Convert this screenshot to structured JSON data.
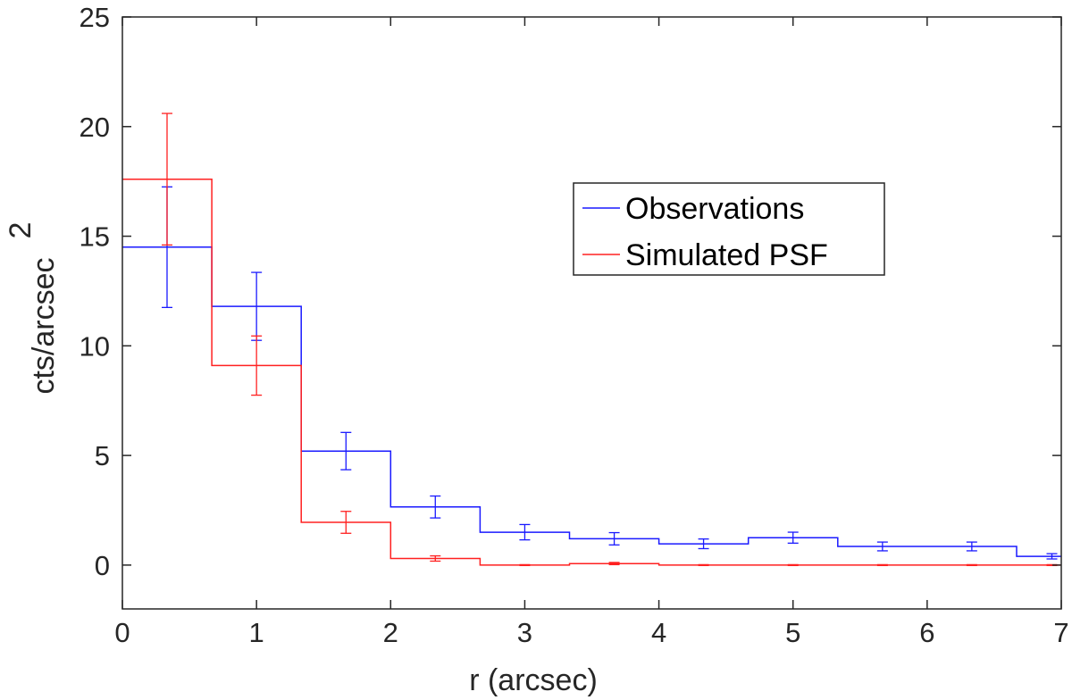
{
  "chart_data": {
    "type": "line",
    "style": "stairs-with-errorbars",
    "title": "",
    "xlabel": "r (arcsec)",
    "ylabel": "cts/arcsec",
    "ylabel_superscript": "2",
    "xlim": [
      0,
      7
    ],
    "ylim": [
      -2,
      25
    ],
    "xticks": [
      0,
      1,
      2,
      3,
      4,
      5,
      6,
      7
    ],
    "xtick_labels": [
      "0",
      "1",
      "2",
      "3",
      "4",
      "5",
      "6",
      "7"
    ],
    "yticks": [
      0,
      5,
      10,
      15,
      20,
      25
    ],
    "ytick_labels": [
      "0",
      "5",
      "10",
      "15",
      "20",
      "25"
    ],
    "grid": false,
    "legend_position": "upper-right-center",
    "bin_edges": [
      0,
      0.6667,
      1.3333,
      2.0,
      2.6667,
      3.3333,
      4.0,
      4.6667,
      5.3333,
      6.0,
      6.6667,
      7.0
    ],
    "bin_centers": [
      0.333,
      1.0,
      1.667,
      2.333,
      3.0,
      3.667,
      4.333,
      5.0,
      5.667,
      6.333,
      6.93
    ],
    "series": [
      {
        "name": "Observations",
        "color": "#1a1aff",
        "values": [
          14.5,
          11.8,
          5.2,
          2.65,
          1.5,
          1.2,
          0.97,
          1.25,
          0.85,
          0.85,
          0.4
        ],
        "errors": [
          2.75,
          1.55,
          0.85,
          0.5,
          0.35,
          0.28,
          0.22,
          0.25,
          0.2,
          0.2,
          0.12
        ]
      },
      {
        "name": "Simulated PSF",
        "color": "#ff2020",
        "values": [
          17.6,
          9.1,
          1.95,
          0.3,
          0.0,
          0.07,
          0.0,
          0.0,
          0.0,
          0.0,
          0.0
        ],
        "errors": [
          3.0,
          1.35,
          0.5,
          0.12,
          0.02,
          0.05,
          0.02,
          0.02,
          0.02,
          0.02,
          0.02
        ]
      }
    ]
  }
}
